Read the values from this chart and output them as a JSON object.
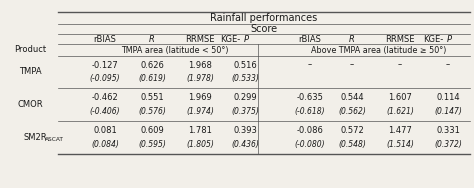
{
  "title": "Rainfall performances",
  "subtitle": "Score",
  "col_headers_left": [
    "rBIAS",
    "R",
    "RRMSE",
    "KGE-P"
  ],
  "col_headers_right": [
    "rBIAS",
    "R",
    "RRMSE",
    "KGE-P"
  ],
  "area_label_left": "TMPA area (latitude < 50°)",
  "area_label_right": "Above TMPA area (latitude ≥ 50°)",
  "row_label": "Product",
  "rows": [
    {
      "name": "TMPA",
      "name_sub": null,
      "left_main": [
        "-0.127",
        "0.626",
        "1.968",
        "0.516"
      ],
      "left_sub": [
        "(-0.095)",
        "(0.619)",
        "(1.978)",
        "(0.533)"
      ],
      "right_main": [
        "–",
        "–",
        "–",
        "–"
      ],
      "right_sub": [
        null,
        null,
        null,
        null
      ]
    },
    {
      "name": "CMOR",
      "name_sub": null,
      "left_main": [
        "-0.462",
        "0.551",
        "1.969",
        "0.299"
      ],
      "left_sub": [
        "(-0.406)",
        "(0.576)",
        "(1.974)",
        "(0.375)"
      ],
      "right_main": [
        "-0.635",
        "0.544",
        "1.607",
        "0.114"
      ],
      "right_sub": [
        "(-0.618)",
        "(0.562)",
        "(1.621)",
        "(0.147)"
      ]
    },
    {
      "name": "SM2R",
      "name_sub": "ASCAT",
      "left_main": [
        "0.081",
        "0.609",
        "1.781",
        "0.393"
      ],
      "left_sub": [
        "(0.084)",
        "(0.595)",
        "(1.805)",
        "(0.436)"
      ],
      "right_main": [
        "-0.086",
        "0.572",
        "1.477",
        "0.331"
      ],
      "right_sub": [
        "(-0.080)",
        "(0.548)",
        "(1.514)",
        "(0.372)"
      ]
    }
  ],
  "bg_color": "#f2efe9",
  "text_color": "#1a1a1a",
  "line_color": "#555555"
}
